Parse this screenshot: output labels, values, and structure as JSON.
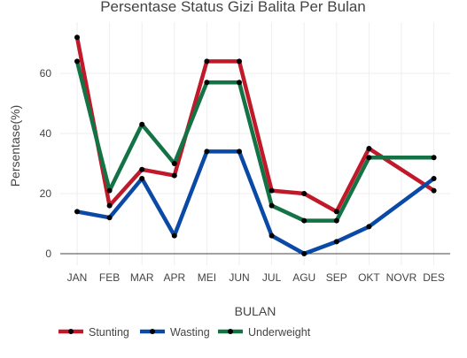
{
  "chart_data": {
    "type": "line",
    "title": "Persentase Status Gizi Balita Per Bulan",
    "xlabel": "BULAN",
    "ylabel": "Persentase(%)",
    "categories": [
      "JAN",
      "FEB",
      "MAR",
      "APR",
      "MEI",
      "JUN",
      "JUL",
      "AGU",
      "SEP",
      "OKT",
      "NOVR",
      "DES"
    ],
    "ylim": [
      -4,
      77
    ],
    "yticks": [
      0,
      20,
      40,
      60
    ],
    "grid": true,
    "legend_position": "bottom-left",
    "series": [
      {
        "name": "Stunting",
        "color": "#c0192a",
        "values": [
          72,
          16,
          28,
          26,
          64,
          64,
          21,
          20,
          14,
          35,
          null,
          21
        ]
      },
      {
        "name": "Wasting",
        "color": "#0a4aa6",
        "values": [
          14,
          12,
          25,
          6,
          34,
          34,
          6,
          0,
          4,
          9,
          null,
          25
        ]
      },
      {
        "name": "Underweight",
        "color": "#137345",
        "values": [
          64,
          21,
          43,
          30,
          57,
          57,
          16,
          11,
          11,
          32,
          null,
          32
        ]
      }
    ]
  }
}
